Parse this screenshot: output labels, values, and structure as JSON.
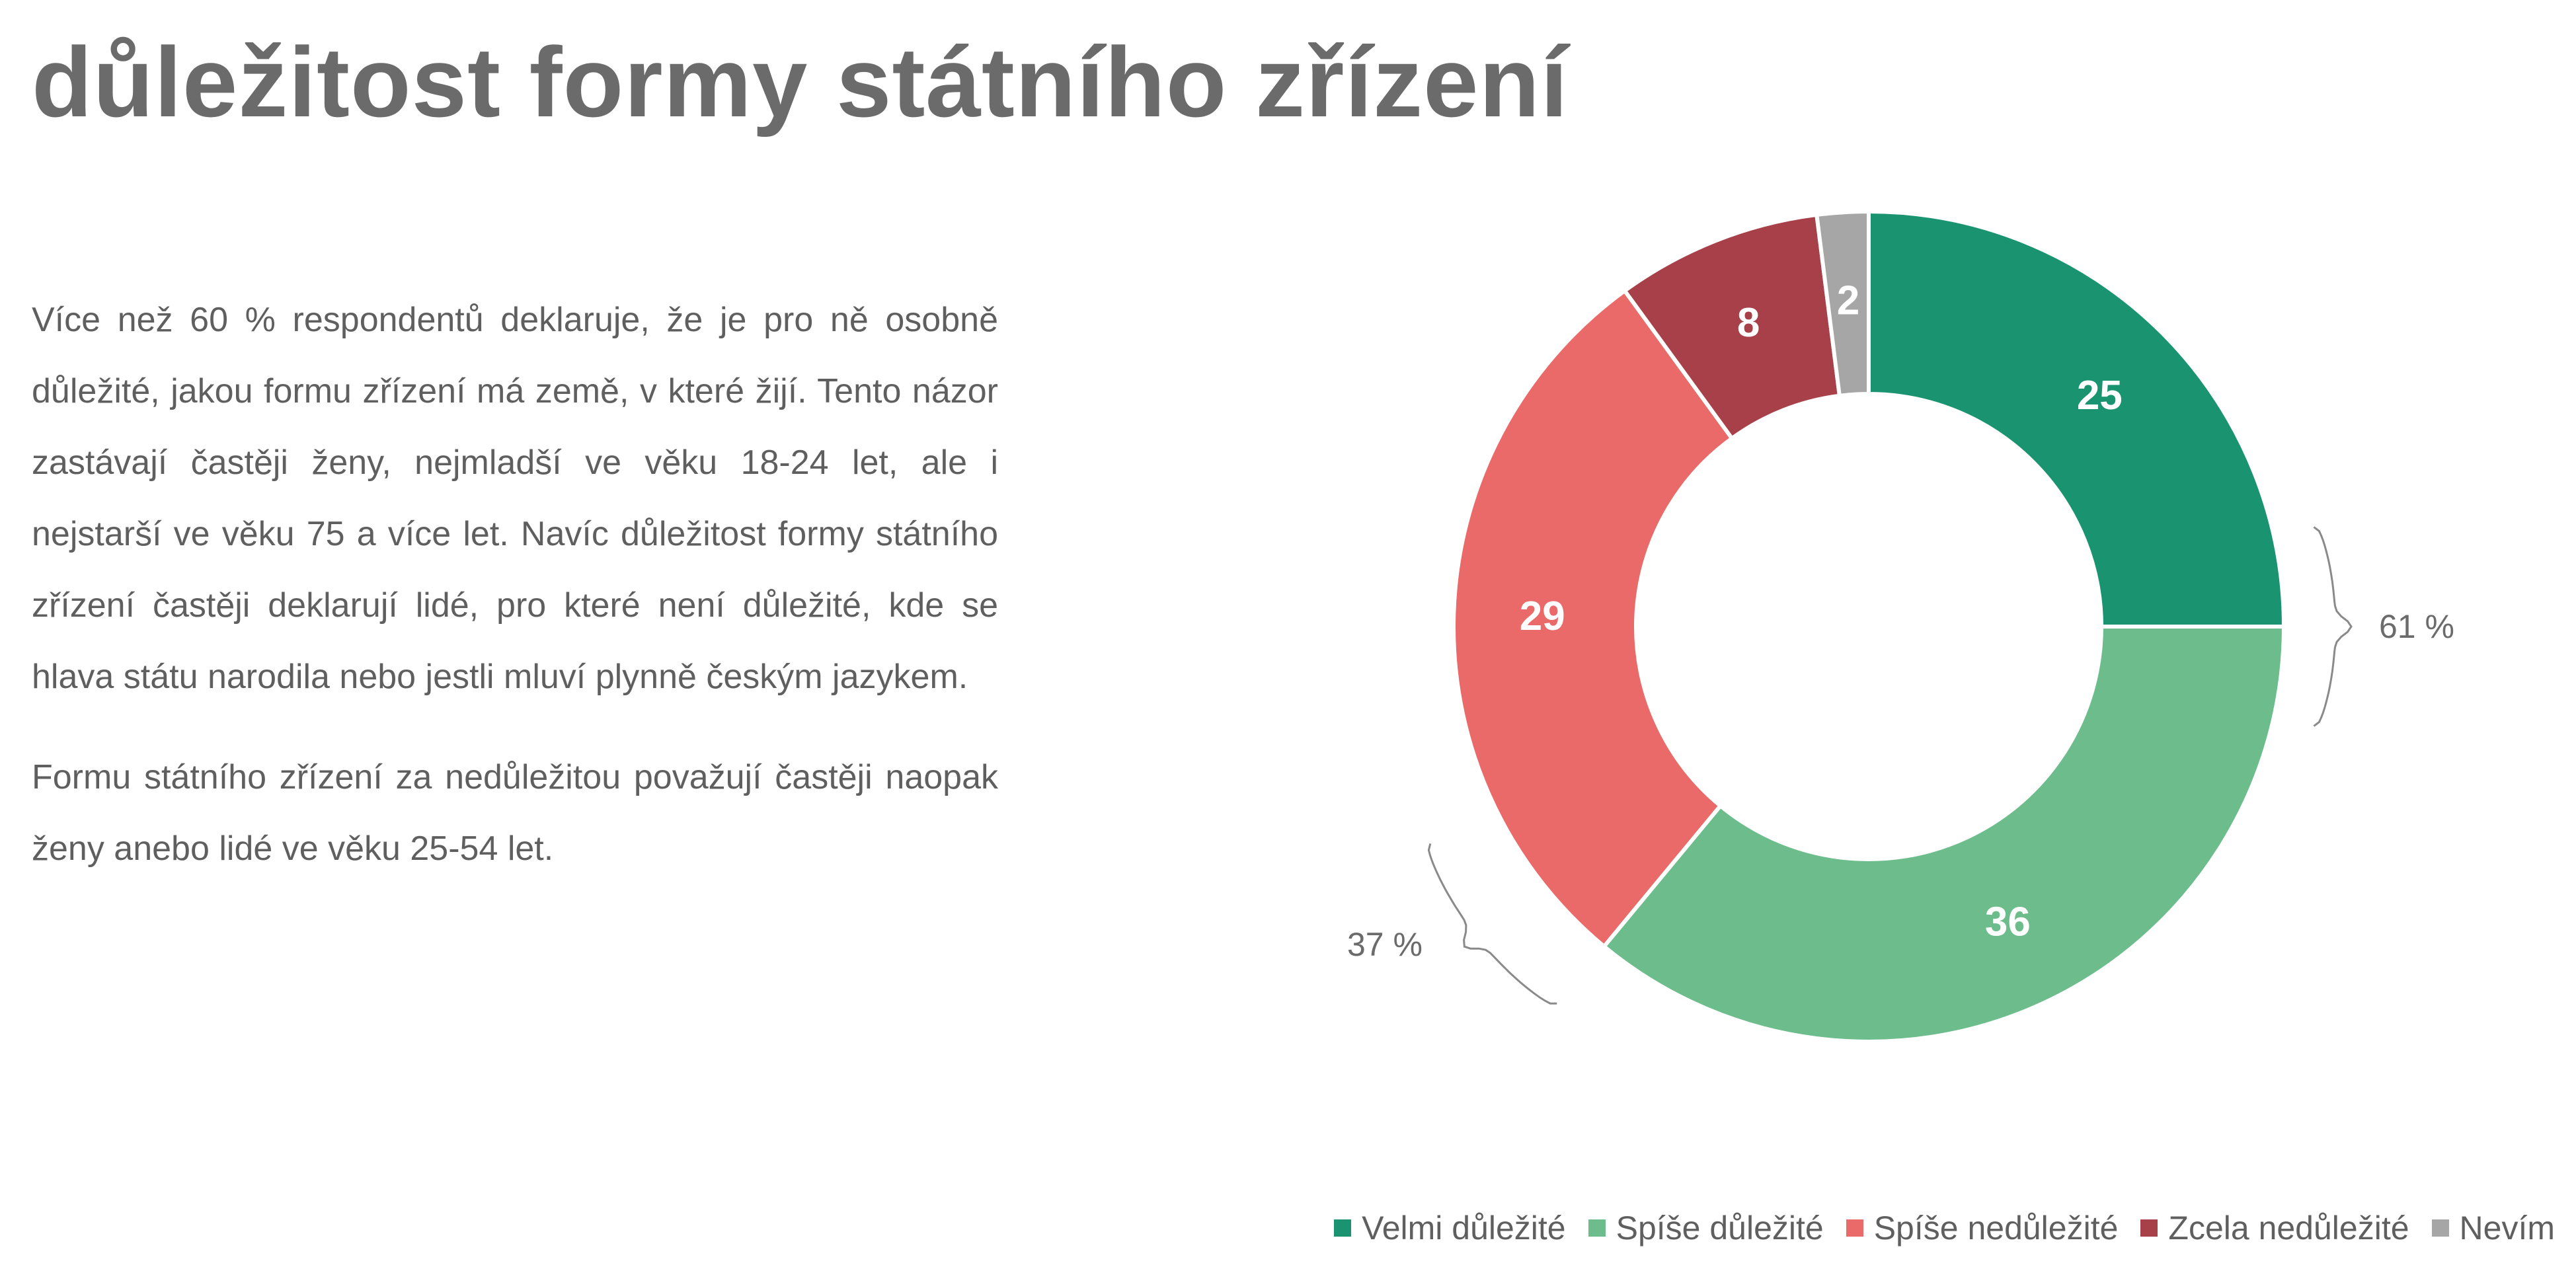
{
  "title": "důležitost formy státního zřízení",
  "paragraphs": [
    "Více než 60 % respondentů deklaruje, že je pro ně osobně důležité, jakou formu zřízení má země, v které žijí. Tento názor zastávají častěji ženy, nejmladší ve věku 18-24 let, ale i nejstarší ve věku 75 a více let. Navíc důležitost formy státního zřízení častěji deklarují lidé, pro které není důležité, kde se hlava státu narodila nebo jestli mluví plynně českým jazykem.",
    "Formu státního zřízení za nedůležitou považují častěji naopak ženy anebo lidé ve věku 25-54 let."
  ],
  "chart_data": {
    "type": "pie",
    "variant": "donut",
    "title": "",
    "categories": [
      "Velmi důležité",
      "Spíše důležité",
      "Spíše nedůležité",
      "Zcela nedůležité",
      "Nevím"
    ],
    "values": [
      25,
      36,
      29,
      8,
      2
    ],
    "colors": [
      "#1a9470",
      "#6cbc8c",
      "#e96a68",
      "#a8404a",
      "#a6a6a6"
    ],
    "data_labels": [
      "25",
      "36",
      "29",
      "8",
      "2"
    ],
    "legend_position": "bottom-right",
    "annotations": [
      {
        "text": "61 %",
        "brace_over": [
          "Velmi důležité",
          "Spíše důležité"
        ]
      },
      {
        "text": "37 %",
        "brace_over": [
          "Spíše nedůležité",
          "Zcela nedůležité"
        ]
      }
    ]
  }
}
